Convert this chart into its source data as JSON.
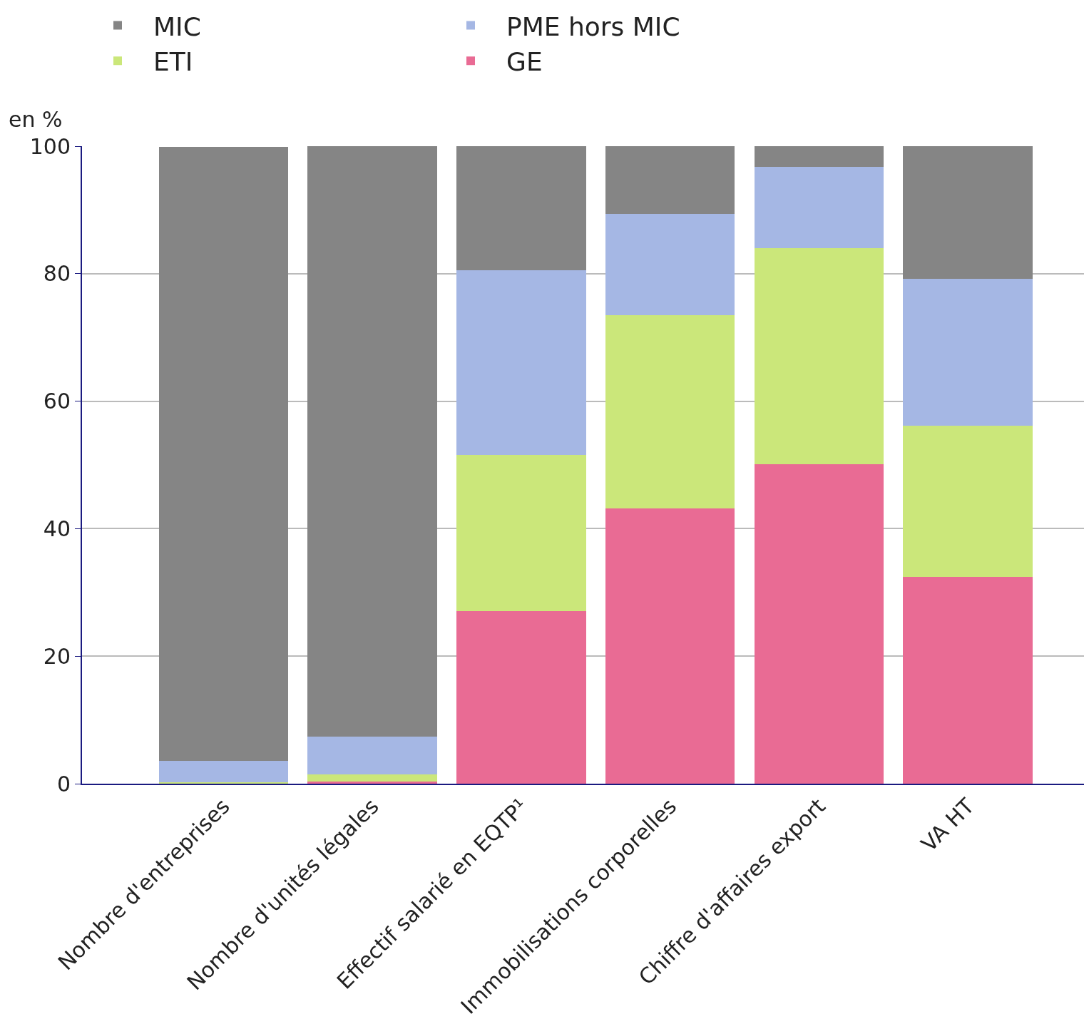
{
  "chart_data": {
    "type": "bar",
    "stacked": true,
    "ylabel": "en %",
    "categories": [
      "Nombre d'entreprises",
      "Nombre d'unités légales",
      "Effectif salarié en EQTP¹",
      "Immobilisations corporelles",
      "Chiffre d'affaires export",
      "VA HT"
    ],
    "series": [
      {
        "name": "GE",
        "color": "#e96b94",
        "values": [
          null,
          0.3,
          27.1,
          43.2,
          50.1,
          32.4
        ]
      },
      {
        "name": "ETI",
        "color": "#cbe77a",
        "values": [
          0.2,
          1.1,
          24.5,
          30.3,
          33.9,
          23.7
        ]
      },
      {
        "name": "PME hors MIC",
        "color": "#a5b7e4",
        "values": [
          3.4,
          6.0,
          28.9,
          15.9,
          12.8,
          23.1
        ]
      },
      {
        "name": "MIC",
        "color": "#858585",
        "values": [
          96.3,
          92.6,
          19.5,
          10.6,
          3.2,
          20.8
        ]
      }
    ],
    "ylim": [
      0,
      100
    ],
    "yticks": [
      0,
      20,
      40,
      60,
      80,
      100
    ],
    "grid": "y",
    "legend": "top"
  }
}
